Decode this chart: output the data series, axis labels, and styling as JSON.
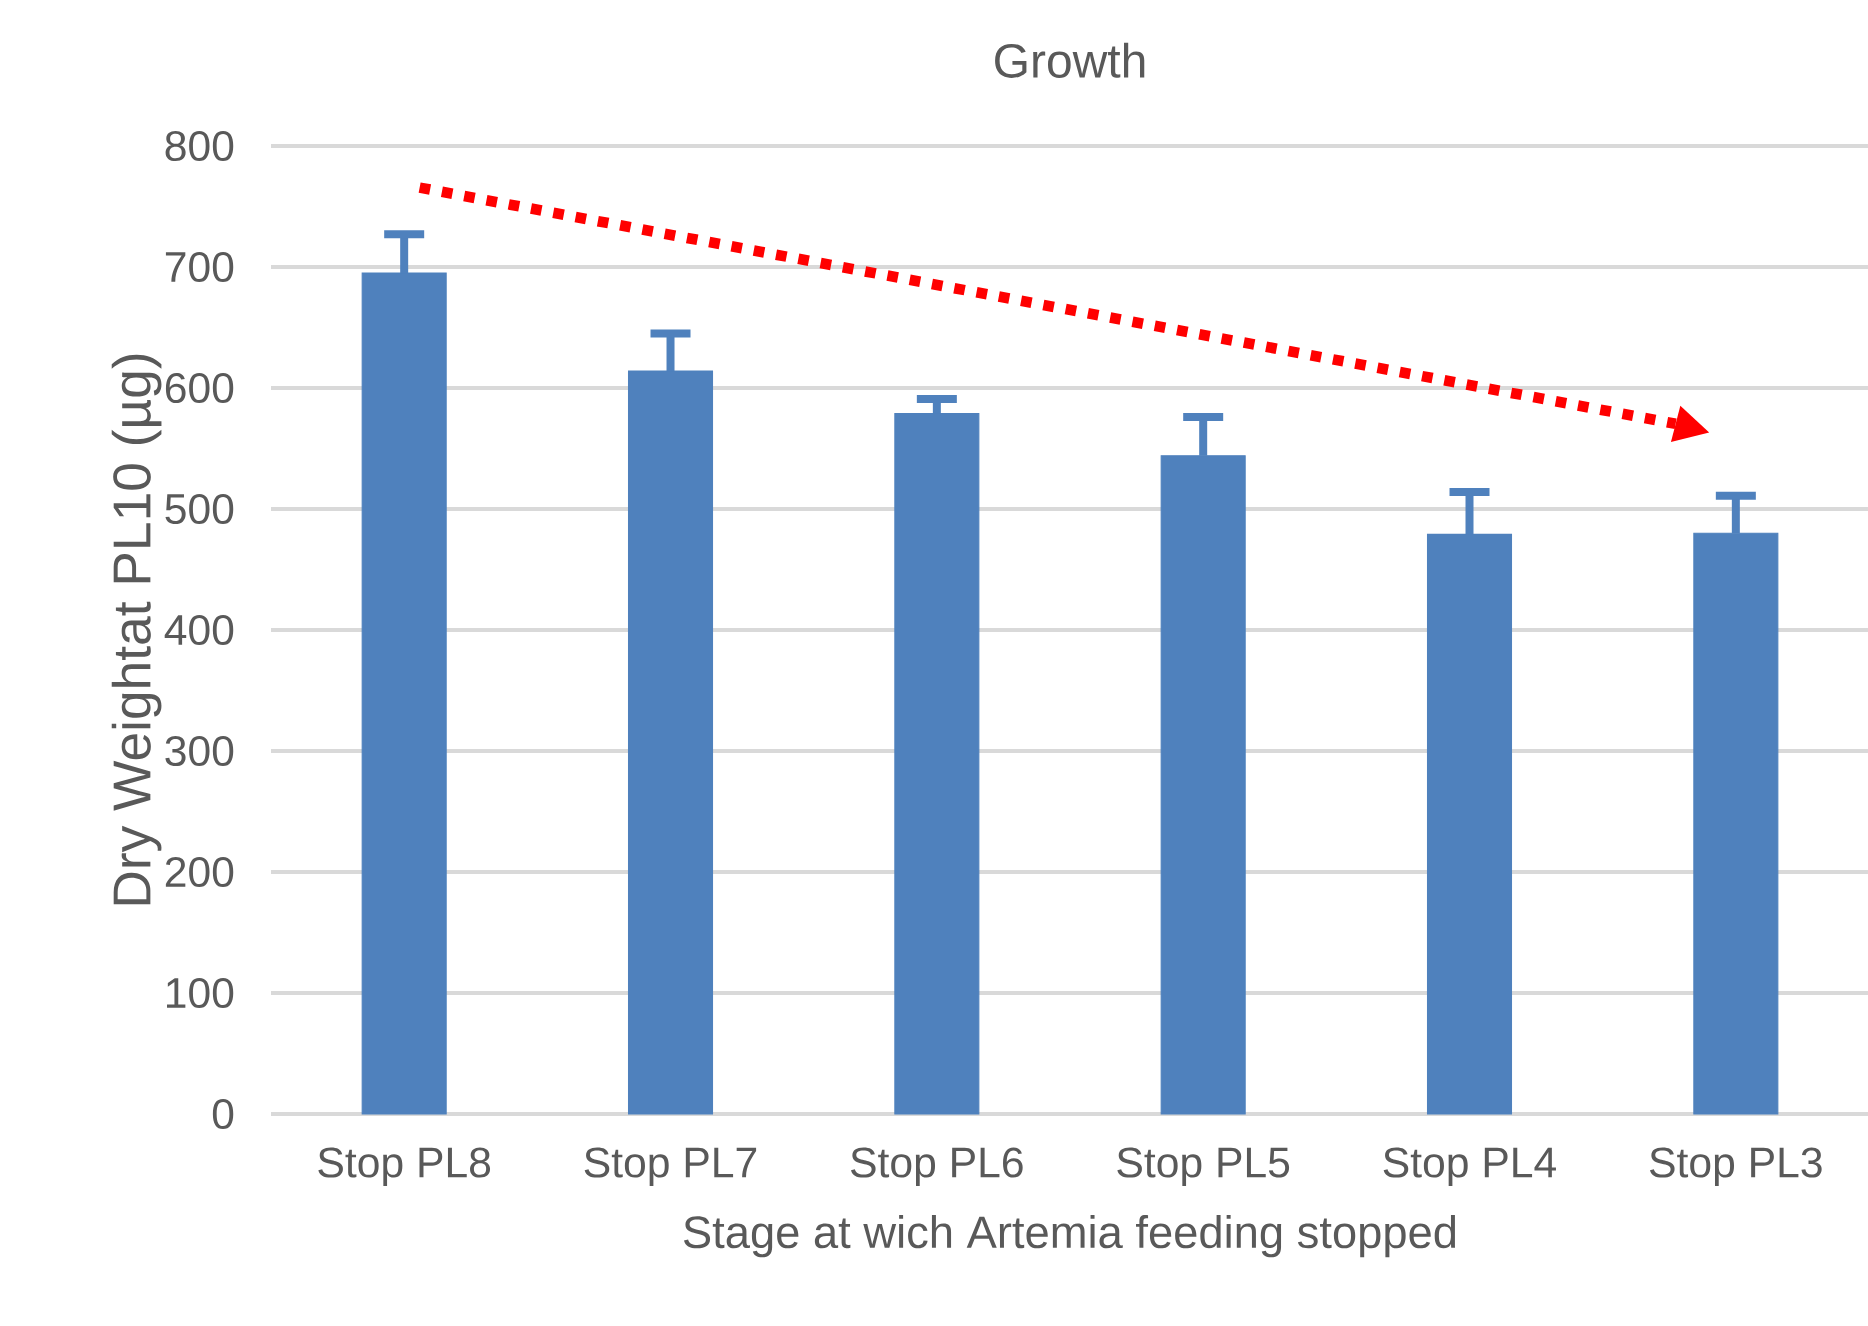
{
  "chart_data": {
    "type": "bar",
    "title": "Growth",
    "xlabel": "Stage at wich Artemia feeding stopped",
    "ylabel": "Dry Weightat PL10 (µg)",
    "categories": [
      "Stop PL8",
      "Stop PL7",
      "Stop PL6",
      "Stop PL5",
      "Stop PL4",
      "Stop PL3"
    ],
    "values": [
      695,
      614,
      579,
      544,
      479,
      480
    ],
    "errors": [
      [
        695,
        727
      ],
      [
        614,
        645
      ],
      [
        579,
        591
      ],
      [
        544,
        576
      ],
      [
        479,
        514
      ],
      [
        480,
        511
      ]
    ],
    "color": "#4f81bd",
    "ylim": [
      0,
      800
    ],
    "yticks": [
      0,
      100,
      200,
      300,
      400,
      500,
      600,
      700,
      800
    ],
    "grid": "y"
  }
}
